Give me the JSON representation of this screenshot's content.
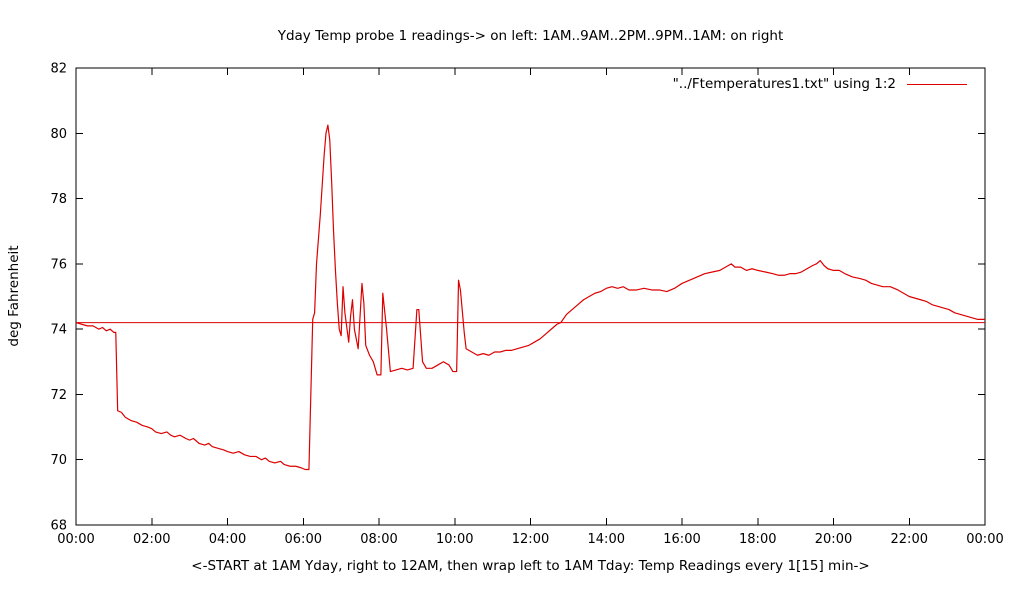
{
  "colors": {
    "series": "#dd0000",
    "reference": "#dd0000",
    "axis": "#000000",
    "background": "#ffffff"
  },
  "chart_data": {
    "type": "line",
    "title": "Yday Temp probe 1 readings-> on left: 1AM..9AM..2PM..9PM..1AM: on right",
    "xlabel": "<-START at 1AM Yday, right to 12AM, then wrap left to 1AM Tday: Temp Readings every 1[15] min->",
    "ylabel": "deg Fahrenheit",
    "legend_label": "\"../Ftemperatures1.txt\" using 1:2",
    "legend_position": "top-right-inside",
    "grid": false,
    "xlim": [
      0,
      24
    ],
    "ylim": [
      68,
      82
    ],
    "x_tick_values": [
      0,
      2,
      4,
      6,
      8,
      10,
      12,
      14,
      16,
      18,
      20,
      22,
      24
    ],
    "x_tick_labels": [
      "00:00",
      "02:00",
      "04:00",
      "06:00",
      "08:00",
      "10:00",
      "12:00",
      "14:00",
      "16:00",
      "18:00",
      "20:00",
      "22:00",
      "00:00"
    ],
    "y_tick_values": [
      68,
      70,
      72,
      74,
      76,
      78,
      80,
      82
    ],
    "y_tick_labels": [
      "68",
      "70",
      "72",
      "74",
      "76",
      "78",
      "80",
      "82"
    ],
    "reference_y": 74.2,
    "series": [
      {
        "name": "temperature",
        "points": [
          [
            0.0,
            74.2
          ],
          [
            0.15,
            74.15
          ],
          [
            0.3,
            74.1
          ],
          [
            0.45,
            74.1
          ],
          [
            0.6,
            74.0
          ],
          [
            0.7,
            74.05
          ],
          [
            0.8,
            73.95
          ],
          [
            0.9,
            74.0
          ],
          [
            1.0,
            73.9
          ],
          [
            1.05,
            73.9
          ],
          [
            1.1,
            71.5
          ],
          [
            1.2,
            71.45
          ],
          [
            1.3,
            71.3
          ],
          [
            1.45,
            71.2
          ],
          [
            1.6,
            71.15
          ],
          [
            1.75,
            71.05
          ],
          [
            1.9,
            71.0
          ],
          [
            2.0,
            70.95
          ],
          [
            2.1,
            70.85
          ],
          [
            2.25,
            70.8
          ],
          [
            2.4,
            70.85
          ],
          [
            2.5,
            70.75
          ],
          [
            2.6,
            70.7
          ],
          [
            2.75,
            70.75
          ],
          [
            2.9,
            70.65
          ],
          [
            3.0,
            70.6
          ],
          [
            3.1,
            70.65
          ],
          [
            3.25,
            70.5
          ],
          [
            3.4,
            70.45
          ],
          [
            3.5,
            70.5
          ],
          [
            3.6,
            70.4
          ],
          [
            3.75,
            70.35
          ],
          [
            3.9,
            70.3
          ],
          [
            4.0,
            70.25
          ],
          [
            4.15,
            70.2
          ],
          [
            4.3,
            70.25
          ],
          [
            4.45,
            70.15
          ],
          [
            4.6,
            70.1
          ],
          [
            4.75,
            70.1
          ],
          [
            4.9,
            70.0
          ],
          [
            5.0,
            70.05
          ],
          [
            5.1,
            69.95
          ],
          [
            5.25,
            69.9
          ],
          [
            5.4,
            69.95
          ],
          [
            5.5,
            69.85
          ],
          [
            5.65,
            69.8
          ],
          [
            5.8,
            69.8
          ],
          [
            5.95,
            69.75
          ],
          [
            6.05,
            69.7
          ],
          [
            6.15,
            69.7
          ],
          [
            6.2,
            72.0
          ],
          [
            6.25,
            74.3
          ],
          [
            6.3,
            74.5
          ],
          [
            6.35,
            76.0
          ],
          [
            6.45,
            77.5
          ],
          [
            6.55,
            79.3
          ],
          [
            6.6,
            80.0
          ],
          [
            6.65,
            80.25
          ],
          [
            6.7,
            79.8
          ],
          [
            6.75,
            78.5
          ],
          [
            6.8,
            77.0
          ],
          [
            6.85,
            75.8
          ],
          [
            6.9,
            74.8
          ],
          [
            6.95,
            74.0
          ],
          [
            7.0,
            73.8
          ],
          [
            7.05,
            75.3
          ],
          [
            7.1,
            74.5
          ],
          [
            7.2,
            73.6
          ],
          [
            7.25,
            74.4
          ],
          [
            7.3,
            74.9
          ],
          [
            7.35,
            74.0
          ],
          [
            7.45,
            73.4
          ],
          [
            7.55,
            75.4
          ],
          [
            7.6,
            74.8
          ],
          [
            7.65,
            73.5
          ],
          [
            7.75,
            73.2
          ],
          [
            7.85,
            73.0
          ],
          [
            7.95,
            72.6
          ],
          [
            8.05,
            72.6
          ],
          [
            8.1,
            75.1
          ],
          [
            8.2,
            74.0
          ],
          [
            8.3,
            72.7
          ],
          [
            8.45,
            72.75
          ],
          [
            8.6,
            72.8
          ],
          [
            8.75,
            72.75
          ],
          [
            8.9,
            72.8
          ],
          [
            9.0,
            74.6
          ],
          [
            9.05,
            74.6
          ],
          [
            9.15,
            73.0
          ],
          [
            9.25,
            72.8
          ],
          [
            9.4,
            72.8
          ],
          [
            9.55,
            72.9
          ],
          [
            9.7,
            73.0
          ],
          [
            9.85,
            72.9
          ],
          [
            9.95,
            72.7
          ],
          [
            10.05,
            72.7
          ],
          [
            10.1,
            75.5
          ],
          [
            10.15,
            75.2
          ],
          [
            10.25,
            73.9
          ],
          [
            10.3,
            73.4
          ],
          [
            10.45,
            73.3
          ],
          [
            10.6,
            73.2
          ],
          [
            10.75,
            73.25
          ],
          [
            10.9,
            73.2
          ],
          [
            11.05,
            73.3
          ],
          [
            11.2,
            73.3
          ],
          [
            11.35,
            73.35
          ],
          [
            11.5,
            73.35
          ],
          [
            11.65,
            73.4
          ],
          [
            11.8,
            73.45
          ],
          [
            11.95,
            73.5
          ],
          [
            12.1,
            73.6
          ],
          [
            12.25,
            73.7
          ],
          [
            12.4,
            73.85
          ],
          [
            12.55,
            74.0
          ],
          [
            12.7,
            74.15
          ],
          [
            12.8,
            74.2
          ],
          [
            12.95,
            74.45
          ],
          [
            13.1,
            74.6
          ],
          [
            13.25,
            74.75
          ],
          [
            13.4,
            74.9
          ],
          [
            13.55,
            75.0
          ],
          [
            13.7,
            75.1
          ],
          [
            13.85,
            75.15
          ],
          [
            14.0,
            75.25
          ],
          [
            14.15,
            75.3
          ],
          [
            14.3,
            75.25
          ],
          [
            14.45,
            75.3
          ],
          [
            14.6,
            75.2
          ],
          [
            14.8,
            75.2
          ],
          [
            15.0,
            75.25
          ],
          [
            15.2,
            75.2
          ],
          [
            15.4,
            75.2
          ],
          [
            15.6,
            75.15
          ],
          [
            15.8,
            75.25
          ],
          [
            16.0,
            75.4
          ],
          [
            16.2,
            75.5
          ],
          [
            16.4,
            75.6
          ],
          [
            16.6,
            75.7
          ],
          [
            16.8,
            75.75
          ],
          [
            17.0,
            75.8
          ],
          [
            17.15,
            75.9
          ],
          [
            17.3,
            76.0
          ],
          [
            17.4,
            75.9
          ],
          [
            17.55,
            75.9
          ],
          [
            17.7,
            75.8
          ],
          [
            17.85,
            75.85
          ],
          [
            18.0,
            75.8
          ],
          [
            18.2,
            75.75
          ],
          [
            18.4,
            75.7
          ],
          [
            18.55,
            75.65
          ],
          [
            18.7,
            75.65
          ],
          [
            18.85,
            75.7
          ],
          [
            19.0,
            75.7
          ],
          [
            19.15,
            75.75
          ],
          [
            19.3,
            75.85
          ],
          [
            19.45,
            75.95
          ],
          [
            19.55,
            76.0
          ],
          [
            19.65,
            76.1
          ],
          [
            19.75,
            75.95
          ],
          [
            19.85,
            75.85
          ],
          [
            20.0,
            75.8
          ],
          [
            20.15,
            75.8
          ],
          [
            20.3,
            75.7
          ],
          [
            20.5,
            75.6
          ],
          [
            20.7,
            75.55
          ],
          [
            20.85,
            75.5
          ],
          [
            21.0,
            75.4
          ],
          [
            21.15,
            75.35
          ],
          [
            21.3,
            75.3
          ],
          [
            21.5,
            75.3
          ],
          [
            21.7,
            75.2
          ],
          [
            21.85,
            75.1
          ],
          [
            22.0,
            75.0
          ],
          [
            22.15,
            74.95
          ],
          [
            22.3,
            74.9
          ],
          [
            22.45,
            74.85
          ],
          [
            22.6,
            74.75
          ],
          [
            22.75,
            74.7
          ],
          [
            22.9,
            74.65
          ],
          [
            23.05,
            74.6
          ],
          [
            23.2,
            74.5
          ],
          [
            23.35,
            74.45
          ],
          [
            23.5,
            74.4
          ],
          [
            23.65,
            74.35
          ],
          [
            23.8,
            74.3
          ],
          [
            24.0,
            74.3
          ]
        ]
      }
    ]
  }
}
